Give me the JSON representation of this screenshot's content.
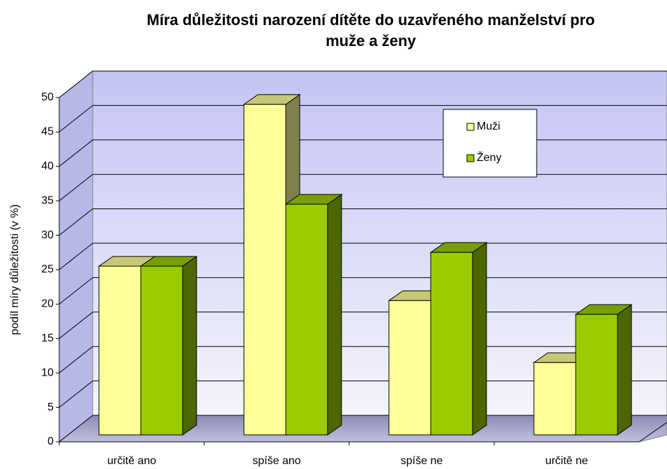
{
  "chart_data": {
    "type": "bar3d",
    "title": "Míra důležitosti narození dítěte do uzavřeného manželství pro muže a ženy",
    "y_label": "podíl míry důležitosti (v %)",
    "categories": [
      "určitě ano",
      "spíše ano",
      "spíše ne",
      "určitě ne"
    ],
    "series": [
      {
        "name": "Muži",
        "color": "#ffff99",
        "values": [
          24.5,
          48,
          19.5,
          10.5
        ]
      },
      {
        "name": "Ženy",
        "color": "#99cc00",
        "values": [
          24.5,
          33.5,
          26.5,
          17.5
        ]
      }
    ],
    "ylim": [
      0,
      50
    ],
    "yticks": [
      0,
      5,
      10,
      15,
      20,
      25,
      30,
      35,
      40,
      45,
      50
    ],
    "grid": true,
    "legend": "upper right"
  }
}
